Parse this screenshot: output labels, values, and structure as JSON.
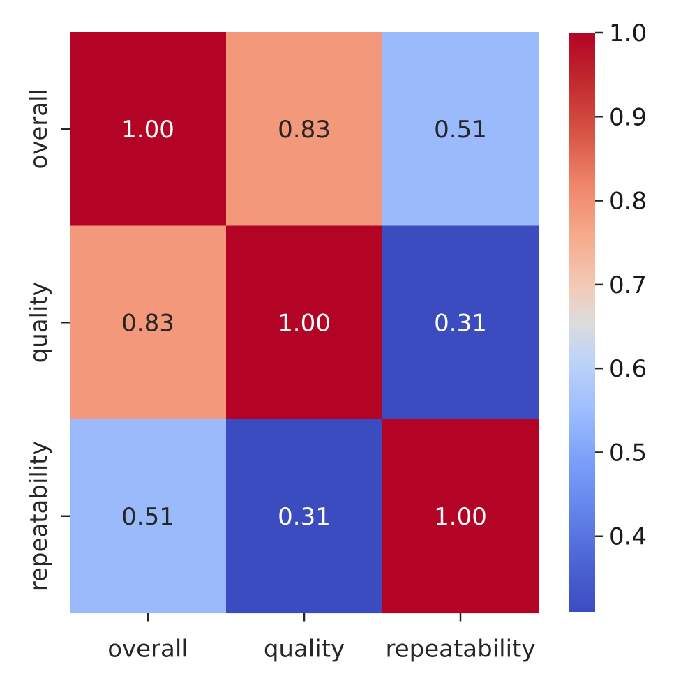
{
  "chart_data": {
    "type": "heatmap",
    "title": "",
    "xlabel": "",
    "ylabel": "",
    "x_categories": [
      "overall",
      "quality",
      "repeatability"
    ],
    "y_categories": [
      "overall",
      "quality",
      "repeatability"
    ],
    "values": [
      [
        1.0,
        0.83,
        0.51
      ],
      [
        0.83,
        1.0,
        0.31
      ],
      [
        0.51,
        0.31,
        1.0
      ]
    ],
    "cell_labels": [
      [
        "1.00",
        "0.83",
        "0.51"
      ],
      [
        "0.83",
        "1.00",
        "0.31"
      ],
      [
        "0.51",
        "0.31",
        "1.00"
      ]
    ],
    "colormap": "coolwarm",
    "vmin": 0.31,
    "vmax": 1.0,
    "colorbar": {
      "ticks": [
        0.4,
        0.5,
        0.6,
        0.7,
        0.8,
        0.9,
        1.0
      ],
      "tick_labels": [
        "0.4",
        "0.5",
        "0.6",
        "0.7",
        "0.8",
        "0.9",
        "1.0"
      ],
      "placement": "right"
    },
    "label_colors": {
      "light": "#ffffff",
      "dark": "#262626"
    }
  }
}
